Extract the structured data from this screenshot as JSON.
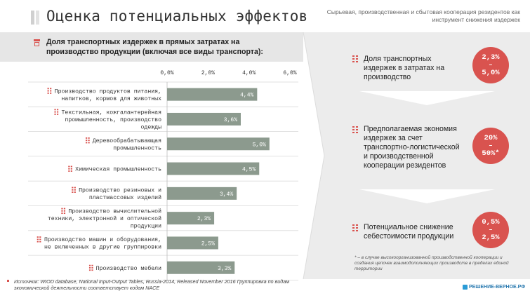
{
  "header": {
    "title": "Оценка потенциальных эффектов",
    "subtitle": "Сырьевая, производственная и сбытовая кооперация резидентов как инструмент снижения издержек"
  },
  "chart_data": {
    "type": "bar",
    "orientation": "horizontal",
    "title": "Доля транспортных издержек в прямых затратах на производство продукции (включая все виды транспорта):",
    "categories": [
      "Производство продуктов питания, напитков, кормов для животных",
      "Текстильная, кожгалантерейная промышленность, производство одежды",
      "Деревообрабатывающая промышленность",
      "Химическая промышленность",
      "Производство резиновых и пластмассовых изделий",
      "Производство вычислительной техники, электронной и оптической продукции",
      "Производство машин и оборудования, не включенных в другие группировки",
      "Производство мебели"
    ],
    "values": [
      4.4,
      3.6,
      5.0,
      4.5,
      3.4,
      2.3,
      2.5,
      3.3
    ],
    "value_labels": [
      "4,4%",
      "3,6%",
      "5,0%",
      "4,5%",
      "3,4%",
      "2,3%",
      "2,5%",
      "3,3%"
    ],
    "xlim": [
      0,
      6
    ],
    "xticks": [
      "0,0%",
      "2,0%",
      "4,0%",
      "6,0%"
    ],
    "bar_color": "#8c9a8e",
    "accent_color": "#d9534f"
  },
  "summary": {
    "cards": [
      {
        "text": "Доля транспортных издержек в затратах на производство",
        "badge_top": "2,3%",
        "badge_mid": "–",
        "badge_bottom": "5,0%"
      },
      {
        "text": "Предполагаемая экономия издержек за счет транспортно-логистической и производственной кооперации резидентов",
        "badge_top": "20%",
        "badge_mid": "–",
        "badge_bottom": "50%*"
      },
      {
        "text": "Потенциальное снижение себестоимости продукции",
        "badge_top": "0,5%",
        "badge_mid": "–",
        "badge_bottom": "2,5%"
      }
    ],
    "footnote": "* – в случае высокоорганизованной производственной кооперации и создания цепочек взаимодополняющих производств в пределах единой территории"
  },
  "footer": {
    "source": "Источник: WIOD database, National Input-Output Tables, Russia-2014, Released November 2016 Группировка по видам экономической деятельности соответствует кодам NACE",
    "logo": "РЕШЕНИЕ-ВЕРНОЕ.РФ"
  }
}
